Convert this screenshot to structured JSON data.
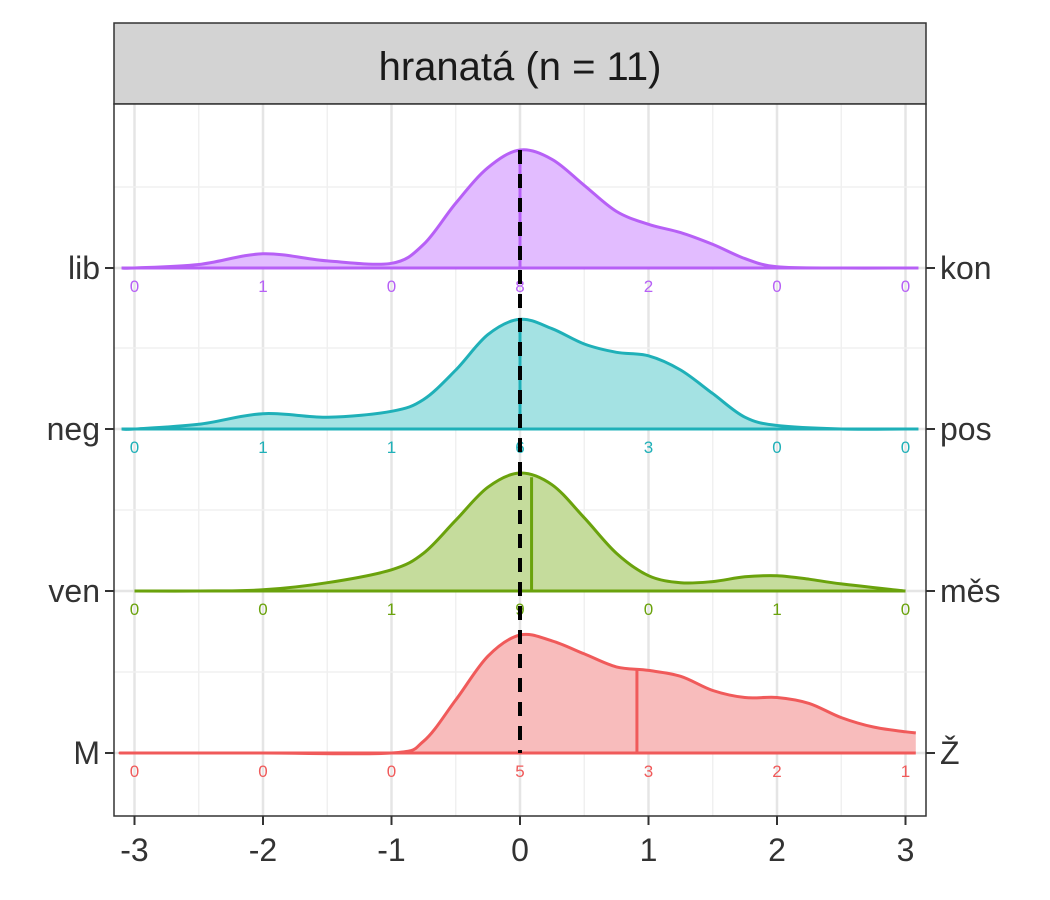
{
  "chart_data": {
    "type": "ridgeline",
    "panel_title": "hranatá (n = 11)",
    "xlim": [
      -3,
      3
    ],
    "x_ticks": [
      -3,
      -2,
      -1,
      0,
      1,
      2,
      3
    ],
    "x_tick_labels": [
      "-3",
      "-2",
      "-1",
      "0",
      "1",
      "2",
      "3"
    ],
    "xlabel": "",
    "ylabel": "",
    "grid": true,
    "reference_line": {
      "x": 0,
      "style": "dashed",
      "color": "#000000"
    },
    "count_positions": [
      -3,
      -2,
      -1,
      0,
      1,
      2,
      3
    ],
    "series": [
      {
        "left_label": "lib",
        "right_label": "kon",
        "color": "#b760f6",
        "fill": "#e2bcff",
        "counts": [
          0,
          1,
          0,
          8,
          2,
          0,
          0
        ],
        "mean": 0.0,
        "density": [
          [
            -3.1,
            0.0
          ],
          [
            -3,
            0.0
          ],
          [
            -2.5,
            0.03
          ],
          [
            -2,
            0.12
          ],
          [
            -1.5,
            0.06
          ],
          [
            -1,
            0.04
          ],
          [
            -0.75,
            0.2
          ],
          [
            -0.5,
            0.55
          ],
          [
            -0.25,
            0.85
          ],
          [
            0,
            1.0
          ],
          [
            0.25,
            0.92
          ],
          [
            0.5,
            0.7
          ],
          [
            0.75,
            0.48
          ],
          [
            1,
            0.37
          ],
          [
            1.25,
            0.3
          ],
          [
            1.5,
            0.2
          ],
          [
            1.75,
            0.08
          ],
          [
            2,
            0.01
          ],
          [
            2.5,
            0.0
          ],
          [
            3,
            0.0
          ],
          [
            3.1,
            0.0
          ]
        ]
      },
      {
        "left_label": "neg",
        "right_label": "pos",
        "color": "#1fb0b8",
        "fill": "#a4e2e3",
        "counts": [
          0,
          1,
          1,
          6,
          3,
          0,
          0
        ],
        "mean": 0.0,
        "density": [
          [
            -3.1,
            0.0
          ],
          [
            -3,
            0.0
          ],
          [
            -2.5,
            0.04
          ],
          [
            -2,
            0.13
          ],
          [
            -1.5,
            0.1
          ],
          [
            -1,
            0.15
          ],
          [
            -0.75,
            0.25
          ],
          [
            -0.5,
            0.5
          ],
          [
            -0.25,
            0.8
          ],
          [
            0,
            0.93
          ],
          [
            0.25,
            0.85
          ],
          [
            0.5,
            0.72
          ],
          [
            0.75,
            0.65
          ],
          [
            1,
            0.62
          ],
          [
            1.25,
            0.5
          ],
          [
            1.5,
            0.3
          ],
          [
            1.75,
            0.1
          ],
          [
            2,
            0.03
          ],
          [
            2.5,
            0.0
          ],
          [
            3,
            0.0
          ],
          [
            3.1,
            0.0
          ]
        ]
      },
      {
        "left_label": "ven",
        "right_label": "měs",
        "color": "#6aa20c",
        "fill": "#c5dc9c",
        "counts": [
          0,
          0,
          1,
          9,
          0,
          1,
          0
        ],
        "mean": 0.09,
        "density": [
          [
            -3,
            0.0
          ],
          [
            -2.5,
            0.0
          ],
          [
            -2,
            0.01
          ],
          [
            -1.5,
            0.07
          ],
          [
            -1,
            0.18
          ],
          [
            -0.75,
            0.32
          ],
          [
            -0.5,
            0.6
          ],
          [
            -0.25,
            0.88
          ],
          [
            0,
            1.0
          ],
          [
            0.25,
            0.9
          ],
          [
            0.5,
            0.62
          ],
          [
            0.75,
            0.32
          ],
          [
            1,
            0.13
          ],
          [
            1.25,
            0.07
          ],
          [
            1.5,
            0.08
          ],
          [
            1.75,
            0.12
          ],
          [
            2,
            0.13
          ],
          [
            2.25,
            0.1
          ],
          [
            2.5,
            0.06
          ],
          [
            3,
            0.0
          ]
        ]
      },
      {
        "left_label": "M",
        "right_label": "Ž",
        "color": "#f05a5a",
        "fill": "#f8bcbc",
        "counts": [
          0,
          0,
          0,
          5,
          3,
          2,
          1
        ],
        "mean": 0.91,
        "density": [
          [
            -3.1,
            0.0
          ],
          [
            -3,
            0.0
          ],
          [
            -2,
            0.0
          ],
          [
            -1,
            0.0
          ],
          [
            -0.75,
            0.1
          ],
          [
            -0.5,
            0.45
          ],
          [
            -0.25,
            0.82
          ],
          [
            0,
            1.0
          ],
          [
            0.25,
            0.95
          ],
          [
            0.5,
            0.84
          ],
          [
            0.75,
            0.73
          ],
          [
            1,
            0.7
          ],
          [
            1.25,
            0.65
          ],
          [
            1.5,
            0.53
          ],
          [
            1.75,
            0.47
          ],
          [
            2,
            0.47
          ],
          [
            2.25,
            0.42
          ],
          [
            2.5,
            0.3
          ],
          [
            2.75,
            0.22
          ],
          [
            3,
            0.18
          ],
          [
            3.08,
            0.17
          ]
        ]
      }
    ]
  }
}
